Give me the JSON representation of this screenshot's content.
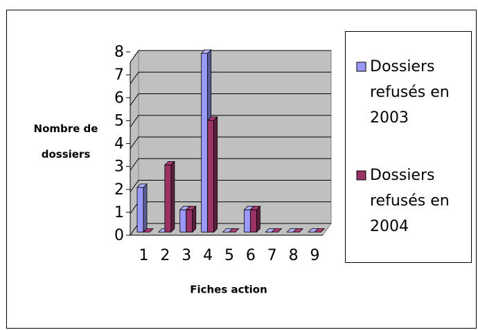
{
  "chart_data": {
    "type": "bar3d",
    "x_label": "Fiches action",
    "y_label": "Nombre de dossiers",
    "categories": [
      "1",
      "2",
      "3",
      "4",
      "5",
      "6",
      "7",
      "8",
      "9"
    ],
    "series": [
      {
        "name": "Dossiers refusés en 2003",
        "color": "#9999ff",
        "values": [
          2,
          0,
          1,
          8,
          0,
          1,
          0,
          0,
          0
        ]
      },
      {
        "name": "Dossiers refusés en 2004",
        "color": "#993366",
        "values": [
          0,
          3,
          1,
          5,
          0,
          1,
          0,
          0,
          0
        ]
      }
    ],
    "ylim": [
      0,
      8
    ],
    "yticks": [
      0,
      1,
      2,
      3,
      4,
      5,
      6,
      7,
      8
    ],
    "grid": true,
    "legend": "right"
  }
}
